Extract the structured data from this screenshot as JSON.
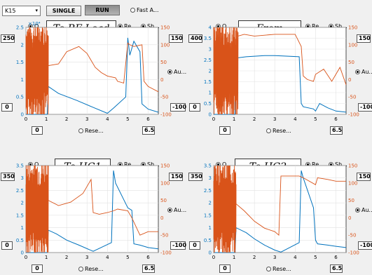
{
  "toolbar": {
    "device_select": "K15",
    "single_label": "SINGLE",
    "run_label": "RUN",
    "fast_label": "Fast A..."
  },
  "plots": [
    {
      "title": "To RF Load",
      "left_top_box": "250",
      "right_top_box": "150",
      "left_bottom_box": "0",
      "right_bottom_box": "-100",
      "x_min_box": "0",
      "x_max_box": "6.5",
      "reset_label": "Rese...",
      "opt1_label": "O...",
      "opt2_label": "Re...",
      "opt3_label": "Sh...",
      "auto_label": "Au...",
      "exponent_label": "×10⁴",
      "y_ticks": [
        "0",
        "0.5",
        "1",
        "1.5",
        "2",
        "2.5"
      ],
      "y2_ticks": [
        "-100",
        "-50",
        "0",
        "50",
        "100",
        "150"
      ],
      "x_ticks": [
        "0",
        "1",
        "2",
        "3",
        "4",
        "5",
        "6"
      ]
    },
    {
      "title": "From Klystron",
      "left_top_box": "400",
      "right_top_box": "150",
      "left_bottom_box": "0",
      "right_bottom_box": "-100",
      "x_min_box": "0",
      "x_max_box": "6.5",
      "reset_label": "Rese...",
      "opt1_label": "O...",
      "opt2_label": "Re...",
      "opt3_label": "Sh...",
      "auto_label": "Au...",
      "exponent_label": "",
      "y_ticks": [
        "0",
        "0.5",
        "1",
        "1.5",
        "2",
        "2.5",
        "3",
        "3.5",
        "4"
      ],
      "y2_ticks": [
        "-100",
        "-50",
        "0",
        "50",
        "100",
        "150"
      ],
      "x_ticks": [
        "0",
        "1",
        "2",
        "3",
        "4",
        "5",
        "6"
      ]
    },
    {
      "title": "To HG1",
      "left_top_box": "350",
      "right_top_box": "150",
      "left_bottom_box": "0",
      "right_bottom_box": "-100",
      "x_min_box": "0",
      "x_max_box": "6.5",
      "reset_label": "Rese...",
      "opt1_label": "O...",
      "opt2_label": "Re...",
      "opt3_label": "Sh...",
      "auto_label": "Au...",
      "exponent_label": "",
      "y_ticks": [
        "0",
        "0.5",
        "1",
        "1.5",
        "2",
        "2.5",
        "3",
        "3.5"
      ],
      "y2_ticks": [
        "-100",
        "-50",
        "0",
        "50",
        "100",
        "150"
      ],
      "x_ticks": [
        "0",
        "1",
        "2",
        "3",
        "4",
        "5",
        "6"
      ]
    },
    {
      "title": "To HG2",
      "left_top_box": "350",
      "right_top_box": "150",
      "left_bottom_box": "0",
      "right_bottom_box": "-100",
      "x_min_box": "0",
      "x_max_box": "6.5",
      "reset_label": "Rese...",
      "opt1_label": "O...",
      "opt2_label": "Re...",
      "opt3_label": "Sh...",
      "auto_label": "Au...",
      "exponent_label": "",
      "y_ticks": [
        "0",
        "0.5",
        "1",
        "1.5",
        "2",
        "2.5",
        "3",
        "3.5"
      ],
      "y2_ticks": [
        "-100",
        "-50",
        "0",
        "50",
        "100",
        "150"
      ],
      "x_ticks": [
        "0",
        "1",
        "2",
        "3",
        "4",
        "5",
        "6"
      ]
    }
  ],
  "colors": {
    "amplitude": "#0072bd",
    "phase": "#d95319",
    "exponent": "#0072bd"
  },
  "chart_data": [
    {
      "type": "line",
      "title": "To RF Load",
      "xlim": [
        0,
        6.5
      ],
      "ylim": [
        0,
        25000
      ],
      "y2lim": [
        -100,
        150
      ],
      "grid": true,
      "series": [
        {
          "axis": "left",
          "color": "#0072bd",
          "x": [
            0,
            1.05,
            1.1,
            1.6,
            2.5,
            3.3,
            4.0,
            4.3,
            4.9,
            5.0,
            5.1,
            5.3,
            5.6,
            5.7,
            6.0,
            6.5
          ],
          "y": [
            0,
            0,
            8000,
            6000,
            4000,
            2000,
            300,
            1800,
            5000,
            22000,
            17000,
            21000,
            18000,
            3000,
            1500,
            600
          ]
        },
        {
          "axis": "right",
          "color": "#d95319",
          "noisy_until": 1.1,
          "x": [
            0,
            1.1,
            1.6,
            2.0,
            2.6,
            3.0,
            3.4,
            3.7,
            4.0,
            4.4,
            4.5,
            4.8,
            5.0,
            5.1,
            5.3,
            5.7,
            5.8,
            6.0,
            6.5
          ],
          "y": [
            40,
            40,
            45,
            80,
            95,
            75,
            35,
            20,
            10,
            5,
            -5,
            -10,
            105,
            100,
            95,
            100,
            -5,
            -20,
            -35
          ]
        }
      ]
    },
    {
      "type": "line",
      "title": "From Klystron",
      "xlim": [
        0,
        6.5
      ],
      "ylim": [
        0,
        4
      ],
      "y2lim": [
        -100,
        150
      ],
      "grid": true,
      "series": [
        {
          "axis": "left",
          "color": "#0072bd",
          "x": [
            0,
            1.05,
            1.1,
            1.2,
            1.6,
            2.5,
            3.0,
            4.2,
            4.3,
            4.4,
            4.9,
            5.0,
            5.2,
            5.6,
            6.0,
            6.5
          ],
          "y": [
            0,
            0,
            2.7,
            2.6,
            2.65,
            2.7,
            2.7,
            2.65,
            0.5,
            0.35,
            0.25,
            0.15,
            0.5,
            0.3,
            0.15,
            0.1
          ]
        },
        {
          "axis": "right",
          "color": "#d95319",
          "noisy_until": 1.2,
          "x": [
            0,
            1.2,
            1.5,
            2.0,
            3.0,
            4.0,
            4.3,
            4.4,
            4.6,
            4.9,
            5.0,
            5.4,
            5.8,
            6.2,
            6.5
          ],
          "y": [
            60,
            125,
            130,
            125,
            130,
            130,
            95,
            10,
            0,
            -5,
            15,
            30,
            -5,
            35,
            -15
          ]
        }
      ]
    },
    {
      "type": "line",
      "title": "To HG1",
      "xlim": [
        0,
        6.5
      ],
      "ylim": [
        0,
        3.5
      ],
      "y2lim": [
        -100,
        150
      ],
      "grid": true,
      "series": [
        {
          "axis": "left",
          "color": "#0072bd",
          "x": [
            0,
            1.05,
            1.1,
            1.5,
            2.0,
            2.6,
            3.3,
            4.2,
            4.3,
            4.4,
            5.0,
            5.2,
            5.3,
            5.6,
            6.0,
            6.5
          ],
          "y": [
            0,
            0,
            0.9,
            0.75,
            0.5,
            0.3,
            0.05,
            0.4,
            3.3,
            2.8,
            1.8,
            1.7,
            0.35,
            0.3,
            0.2,
            0.15
          ]
        },
        {
          "axis": "right",
          "color": "#d95319",
          "noisy_until": 1.1,
          "x": [
            0,
            1.1,
            1.6,
            2.2,
            2.8,
            3.2,
            3.3,
            3.6,
            4.0,
            4.3,
            4.5,
            5.0,
            5.2,
            5.6,
            6.0,
            6.5
          ],
          "y": [
            50,
            50,
            35,
            45,
            70,
            110,
            15,
            10,
            15,
            20,
            25,
            20,
            0,
            -50,
            -40,
            -40
          ]
        }
      ]
    },
    {
      "type": "line",
      "title": "To HG2",
      "xlim": [
        0,
        6.5
      ],
      "ylim": [
        0,
        3.5
      ],
      "y2lim": [
        -100,
        150
      ],
      "grid": true,
      "series": [
        {
          "axis": "left",
          "color": "#0072bd",
          "x": [
            0,
            1.05,
            1.1,
            1.6,
            2.0,
            2.5,
            3.0,
            3.3,
            4.2,
            4.3,
            4.4,
            4.9,
            5.0,
            5.1,
            5.6,
            6.0,
            6.5
          ],
          "y": [
            0,
            0,
            1.0,
            0.8,
            0.55,
            0.3,
            0.1,
            0.02,
            0.4,
            3.3,
            3.0,
            1.8,
            0.5,
            0.35,
            0.3,
            0.25,
            0.2
          ]
        },
        {
          "axis": "right",
          "color": "#d95319",
          "noisy_until": 1.1,
          "x": [
            0,
            1.1,
            1.5,
            2.0,
            2.5,
            3.0,
            3.2,
            3.3,
            4.2,
            4.4,
            5.0,
            5.1,
            5.6,
            6.0,
            6.5
          ],
          "y": [
            40,
            40,
            20,
            -10,
            -30,
            -40,
            -50,
            120,
            120,
            115,
            95,
            115,
            110,
            105,
            105
          ]
        }
      ]
    }
  ]
}
